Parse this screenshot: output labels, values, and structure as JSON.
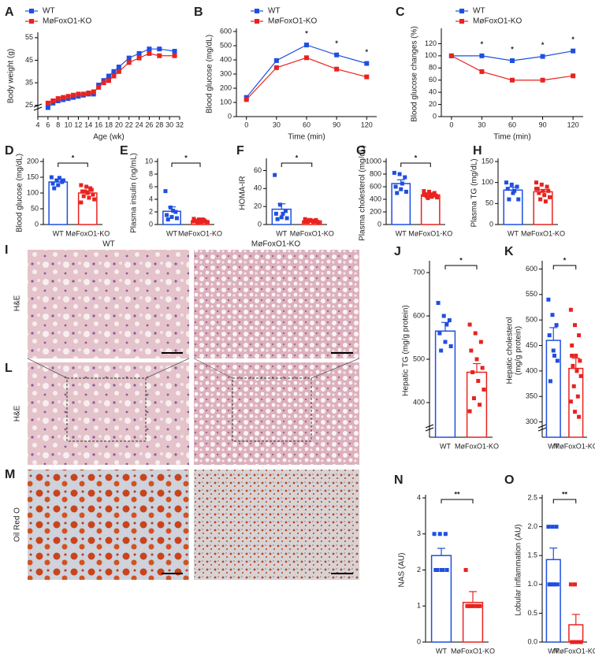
{
  "chart_data": [
    {
      "type": "line",
      "label": "A",
      "xlabel": "Age (wk)",
      "ylabel": "Body weight (g)",
      "x": [
        6,
        7,
        8,
        9,
        10,
        11,
        12,
        13,
        14,
        15,
        16,
        17,
        18,
        19,
        20,
        22,
        24,
        26,
        28,
        31
      ],
      "xlim": [
        4,
        32
      ],
      "xticks": [
        4,
        6,
        8,
        10,
        12,
        14,
        16,
        18,
        20,
        22,
        24,
        26,
        28,
        30,
        32
      ],
      "ylim": [
        20,
        56
      ],
      "yticks": [
        25,
        35,
        45,
        55
      ],
      "y_break": true,
      "series": [
        {
          "name": "WT",
          "color": "#1f4fe0",
          "values": [
            24,
            26,
            27,
            27.5,
            28,
            28.5,
            29,
            29.5,
            30,
            30,
            34,
            36,
            38,
            40,
            42,
            46,
            48,
            50,
            50,
            49
          ]
        },
        {
          "name": "MøFoxO1-KO",
          "color": "#e8231f",
          "values": [
            26,
            27,
            28,
            28.5,
            29,
            29.5,
            30,
            30,
            30.5,
            31,
            33,
            35,
            36,
            38,
            40,
            44,
            46,
            48,
            47,
            47
          ]
        }
      ]
    },
    {
      "type": "line",
      "label": "B",
      "xlabel": "Time (min)",
      "ylabel": "Blood glucose (mg/dL)",
      "x": [
        0,
        30,
        60,
        90,
        120
      ],
      "xlim": [
        -10,
        130
      ],
      "xticks": [
        0,
        30,
        60,
        90,
        120
      ],
      "ylim": [
        0,
        600
      ],
      "yticks": [
        0,
        100,
        200,
        300,
        400,
        500,
        600
      ],
      "series": [
        {
          "name": "WT",
          "color": "#1f4fe0",
          "values": [
            135,
            395,
            505,
            435,
            375
          ]
        },
        {
          "name": "MøFoxO1-KO",
          "color": "#e8231f",
          "values": [
            120,
            345,
            415,
            335,
            280
          ]
        }
      ],
      "significance": [
        {
          "x": 60,
          "label": "*"
        },
        {
          "x": 90,
          "label": "*"
        },
        {
          "x": 120,
          "label": "*"
        }
      ]
    },
    {
      "type": "line",
      "label": "C",
      "xlabel": "Time (min)",
      "ylabel": "Blood glucose changes (%)",
      "x": [
        0,
        30,
        60,
        90,
        120
      ],
      "xlim": [
        -10,
        130
      ],
      "xticks": [
        0,
        30,
        60,
        90,
        120
      ],
      "ylim": [
        0,
        140
      ],
      "yticks": [
        0,
        20,
        40,
        60,
        80,
        100,
        120
      ],
      "series": [
        {
          "name": "WT",
          "color": "#1f4fe0",
          "values": [
            100,
            100,
            92,
            99,
            108
          ]
        },
        {
          "name": "MøFoxO1-KO",
          "color": "#e8231f",
          "values": [
            100,
            74,
            60,
            60,
            67
          ]
        }
      ],
      "significance": [
        {
          "x": 30,
          "label": "*"
        },
        {
          "x": 60,
          "label": "*"
        },
        {
          "x": 90,
          "label": "*"
        },
        {
          "x": 120,
          "label": "*"
        }
      ]
    },
    {
      "type": "bar",
      "label": "D",
      "ylabel": [
        "Blood glucose (mg/dL)"
      ],
      "categories": [
        "WT",
        "MøFoxO1-KO"
      ],
      "colors": [
        "#1f4fe0",
        "#e8231f"
      ],
      "values": [
        135,
        100
      ],
      "errors": [
        8,
        7
      ],
      "ylim": [
        0,
        200
      ],
      "yticks": [
        0,
        50,
        100,
        150,
        200
      ],
      "significance": "*",
      "points": [
        [
          150,
          140,
          135,
          130,
          125,
          140,
          115,
          148
        ],
        [
          125,
          120,
          110,
          105,
          100,
          95,
          90,
          85,
          80,
          105,
          115,
          70
        ]
      ]
    },
    {
      "type": "bar",
      "label": "E",
      "ylabel": [
        "Plasma insulin (ng/mL)"
      ],
      "categories": [
        "WT",
        "MøFoxO1-KO"
      ],
      "colors": [
        "#1f4fe0",
        "#e8231f"
      ],
      "values": [
        2.1,
        0.6
      ],
      "errors": [
        0.7,
        0.1
      ],
      "ylim": [
        0,
        10
      ],
      "yticks": [
        0,
        2,
        4,
        6,
        8,
        10
      ],
      "significance": "*",
      "points": [
        [
          5.3,
          2.7,
          2.0,
          1.5,
          1.2,
          1.0,
          0.8,
          2.2
        ],
        [
          0.9,
          0.8,
          0.7,
          0.6,
          0.6,
          0.5,
          0.5,
          0.4,
          0.4,
          0.3,
          0.8,
          0.5
        ]
      ]
    },
    {
      "type": "bar",
      "label": "F",
      "ylabel": [
        "HOMA-IR"
      ],
      "categories": [
        "WT",
        "MøFoxO1-KO"
      ],
      "colors": [
        "#1f4fe0",
        "#e8231f"
      ],
      "values": [
        17,
        4
      ],
      "errors": [
        6,
        0.5
      ],
      "ylim": [
        0,
        70
      ],
      "yticks": [
        0,
        20,
        40,
        60
      ],
      "significance": "*",
      "points": [
        [
          55,
          22,
          15,
          12,
          8,
          7,
          6,
          12
        ],
        [
          6,
          5,
          5,
          4,
          4,
          3,
          3,
          3,
          2,
          5,
          4,
          3
        ]
      ]
    },
    {
      "type": "bar",
      "label": "G",
      "ylabel": [
        "Plasma cholesterol (mg/dL)"
      ],
      "categories": [
        "WT",
        "MøFoxO1-KO"
      ],
      "colors": [
        "#1f4fe0",
        "#e8231f"
      ],
      "values": [
        650,
        470
      ],
      "errors": [
        60,
        20
      ],
      "ylim": [
        0,
        1000
      ],
      "yticks": [
        0,
        200,
        400,
        600,
        800,
        1000
      ],
      "significance": "*",
      "points": [
        [
          820,
          800,
          750,
          600,
          560,
          520,
          500,
          650
        ],
        [
          530,
          520,
          500,
          480,
          470,
          460,
          450,
          440,
          430,
          420,
          480,
          470
        ]
      ]
    },
    {
      "type": "bar",
      "label": "H",
      "ylabel": [
        "Plasma TG (mg/dL)"
      ],
      "categories": [
        "WT",
        "MøFoxO1-KO"
      ],
      "colors": [
        "#1f4fe0",
        "#e8231f"
      ],
      "values": [
        82,
        78
      ],
      "errors": [
        7,
        5
      ],
      "ylim": [
        0,
        150
      ],
      "yticks": [
        0,
        50,
        100,
        150
      ],
      "points": [
        [
          100,
          95,
          90,
          85,
          75,
          60,
          60,
          80
        ],
        [
          100,
          95,
          90,
          85,
          80,
          80,
          75,
          70,
          65,
          60,
          55,
          85
        ]
      ]
    },
    {
      "type": "bar",
      "label": "J",
      "ylabel": [
        "Hepatic TG (mg/g protein)"
      ],
      "categories": [
        "WT",
        "MøFoxO1-KO"
      ],
      "colors": [
        "#1f4fe0",
        "#e8231f"
      ],
      "values": [
        565,
        470
      ],
      "errors": [
        20,
        20
      ],
      "ylim": [
        320,
        720
      ],
      "yticks": [
        400,
        500,
        600,
        700
      ],
      "y_break": true,
      "significance": "*",
      "points": [
        [
          630,
          600,
          590,
          560,
          540,
          530,
          520,
          580
        ],
        [
          580,
          560,
          540,
          520,
          500,
          480,
          470,
          450,
          430,
          410,
          395,
          380
        ]
      ]
    },
    {
      "type": "bar",
      "label": "K",
      "ylabel": [
        "Hepatic cholesterol",
        "(mg/g protein)"
      ],
      "categories": [
        "WT",
        "MøFoxO1-KO"
      ],
      "colors": [
        "#1f4fe0",
        "#e8231f"
      ],
      "values": [
        460,
        405
      ],
      "errors": [
        25,
        20
      ],
      "ylim": [
        270,
        610
      ],
      "yticks": [
        300,
        350,
        400,
        450,
        500,
        550,
        600
      ],
      "y_break": true,
      "significance": "*",
      "points": [
        [
          540,
          510,
          490,
          470,
          440,
          420,
          380,
          430
        ],
        [
          520,
          490,
          470,
          450,
          430,
          420,
          410,
          400,
          390,
          370,
          350,
          340,
          320,
          310,
          430
        ]
      ]
    },
    {
      "type": "bar",
      "label": "N",
      "ylabel": [
        "NAS (AU)"
      ],
      "categories": [
        "WT",
        "MøFoxO1-KO"
      ],
      "colors": [
        "#1f4fe0",
        "#e8231f"
      ],
      "values": [
        2.4,
        1.1
      ],
      "errors": [
        0.2,
        0.3
      ],
      "ylim": [
        0,
        4
      ],
      "yticks": [
        0,
        1,
        2,
        3,
        4
      ],
      "significance": "**",
      "points": [
        [
          3,
          3,
          3,
          2,
          2,
          2,
          2,
          2
        ],
        [
          2,
          1,
          1,
          1,
          1,
          1,
          1,
          1,
          1,
          1
        ]
      ]
    },
    {
      "type": "bar",
      "label": "O",
      "ylabel": [
        "Lobular inflammation (AU)"
      ],
      "categories": [
        "WT",
        "MøFoxO1-KO"
      ],
      "colors": [
        "#1f4fe0",
        "#e8231f"
      ],
      "values": [
        1.43,
        0.3
      ],
      "errors": [
        0.2,
        0.18
      ],
      "ylim": [
        0,
        2.5
      ],
      "yticks": [
        {
          "value": 0,
          "label": "0.0"
        },
        0.5,
        {
          "value": 1,
          "label": "1.0"
        },
        1.5,
        {
          "value": 2,
          "label": "2.0"
        },
        2.5
      ],
      "significance": "**",
      "points": [
        [
          2,
          2,
          2,
          1,
          1,
          1,
          1,
          1
        ],
        [
          1,
          1,
          0,
          0,
          0,
          0,
          0,
          0,
          0,
          0
        ]
      ]
    }
  ],
  "image_panels": [
    {
      "label": "I",
      "columns": [
        "WT",
        "MøFoxO1-KO"
      ],
      "stain": "H&E"
    },
    {
      "label": "L",
      "stain": "H&E"
    },
    {
      "label": "M",
      "stain": "Oil Red O"
    }
  ]
}
